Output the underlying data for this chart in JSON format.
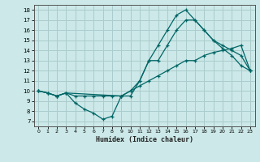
{
  "xlabel": "Humidex (Indice chaleur)",
  "bg_color": "#cce8e8",
  "grid_color": "#aacccc",
  "line_color": "#006666",
  "xlim": [
    -0.5,
    23.5
  ],
  "ylim": [
    6.5,
    18.5
  ],
  "xticks": [
    0,
    1,
    2,
    3,
    4,
    5,
    6,
    7,
    8,
    9,
    10,
    11,
    12,
    13,
    14,
    15,
    16,
    17,
    18,
    19,
    20,
    21,
    22,
    23
  ],
  "yticks": [
    7,
    8,
    9,
    10,
    11,
    12,
    13,
    14,
    15,
    16,
    17,
    18
  ],
  "line1_x": [
    0,
    1,
    2,
    3,
    9,
    10,
    11,
    12,
    13,
    14,
    15,
    16,
    17,
    18,
    19,
    20,
    21,
    22,
    23
  ],
  "line1_y": [
    10,
    9.8,
    9.5,
    9.8,
    9.5,
    10.0,
    10.5,
    11.0,
    11.5,
    12.0,
    12.5,
    13.0,
    13.0,
    13.5,
    13.8,
    14.0,
    14.2,
    14.5,
    12.0
  ],
  "line2_x": [
    0,
    1,
    2,
    3,
    4,
    5,
    6,
    7,
    8,
    9,
    10,
    11,
    12,
    13,
    14,
    15,
    16,
    17,
    18,
    19,
    20,
    21,
    22,
    23
  ],
  "line2_y": [
    10,
    9.8,
    9.5,
    9.8,
    8.8,
    8.2,
    7.8,
    7.2,
    7.5,
    9.5,
    9.5,
    11.0,
    13.0,
    14.5,
    16.0,
    17.5,
    18.0,
    17.0,
    16.0,
    15.0,
    14.2,
    13.5,
    12.5,
    12.0
  ],
  "line3_x": [
    0,
    1,
    2,
    3,
    4,
    5,
    6,
    7,
    8,
    9,
    10,
    11,
    12,
    13,
    14,
    15,
    16,
    17,
    18,
    19,
    20,
    21,
    22,
    23
  ],
  "line3_y": [
    10,
    9.8,
    9.5,
    9.8,
    9.5,
    9.5,
    9.5,
    9.5,
    9.5,
    9.5,
    10.0,
    11.0,
    13.0,
    13.0,
    14.5,
    16.0,
    17.0,
    17.0,
    16.0,
    15.0,
    14.5,
    14.0,
    13.5,
    12.0
  ]
}
